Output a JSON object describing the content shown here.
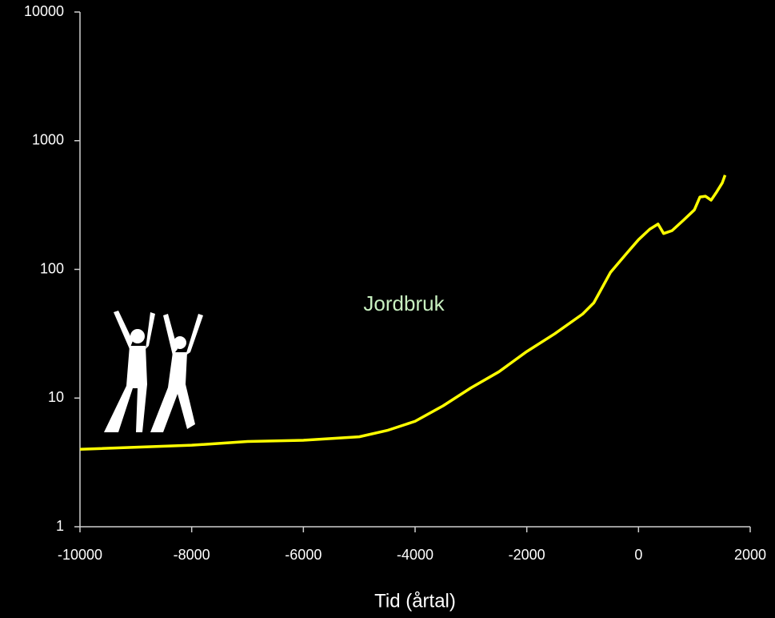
{
  "chart_data": {
    "type": "line",
    "x_label": "Tid (årtal)",
    "annotations": [
      "Jordbruk"
    ],
    "log_scale_y": true,
    "grid": false,
    "x": [
      -10000,
      -8000,
      -7000,
      -6000,
      -5000,
      -4500,
      -4000,
      -3500,
      -3000,
      -2500,
      -2000,
      -1500,
      -1000,
      -800,
      -500,
      -200,
      0,
      200,
      350,
      450,
      600,
      800,
      1000,
      1100,
      1200,
      1300,
      1400,
      1500,
      1550
    ],
    "series": [
      {
        "color": "#ffff00",
        "values": [
          4.0,
          4.3,
          4.6,
          4.7,
          5.0,
          5.6,
          6.6,
          8.7,
          12,
          16,
          23,
          31.6,
          45,
          55,
          95,
          135,
          170,
          205,
          225,
          190,
          200,
          240,
          290,
          365,
          370,
          345,
          400,
          470,
          540
        ]
      }
    ],
    "xlim": [
      -10000,
      2000
    ],
    "xticks": [
      -10000,
      -8000,
      -6000,
      -4000,
      -2000,
      0,
      2000
    ],
    "ylim": [
      1,
      10000
    ],
    "yticks": [
      1,
      10,
      100,
      1000,
      10000
    ]
  }
}
